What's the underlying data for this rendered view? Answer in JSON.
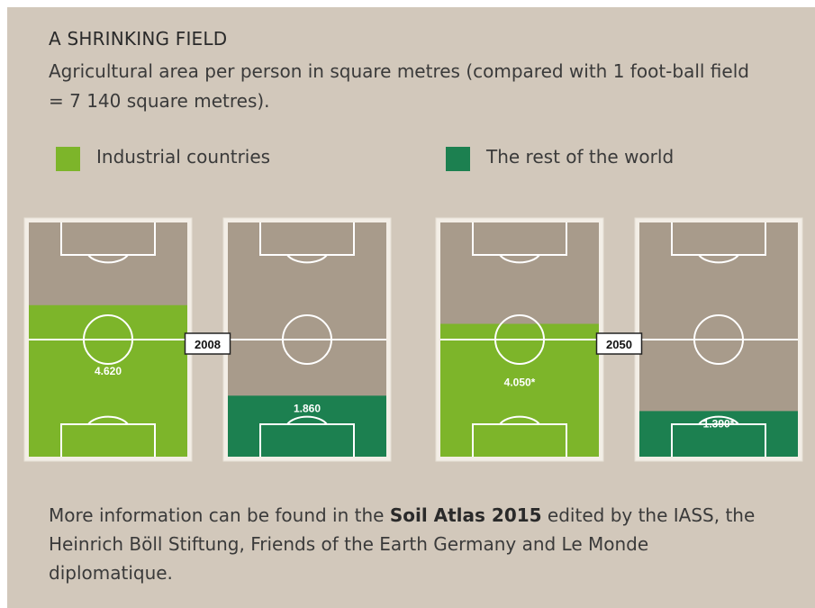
{
  "chart_data": {
    "type": "bar",
    "title": "A SHRINKING FIELD",
    "subtitle": "Agricultural area per person in square metres (compared with 1 foot-ball field = 7 140 square metres).",
    "unit": "square metres",
    "field_capacity": 7140,
    "categories": [
      "2008",
      "2050"
    ],
    "series": [
      {
        "name": "Industrial countries",
        "values": [
          4620,
          4050
        ],
        "labels": [
          "4.620",
          "4.050*"
        ],
        "color": "#7db52a"
      },
      {
        "name": "The rest of the world",
        "values": [
          1860,
          1390
        ],
        "labels": [
          "1.860",
          "1.390*"
        ],
        "color": "#1c8050"
      }
    ],
    "legend_position": "top"
  },
  "colors": {
    "background": "#d2c8bb",
    "field_bg": "#a89b8b",
    "field_lines": "#ffffff",
    "industrial": "#7db52a",
    "rest": "#1c8050"
  },
  "footer": {
    "before": "More information can be found in the ",
    "bold": "Soil Atlas 2015",
    "after": " edited by the IASS, the Heinrich Böll Stiftung, Friends of the Earth Germany and Le Monde diplomatique."
  }
}
